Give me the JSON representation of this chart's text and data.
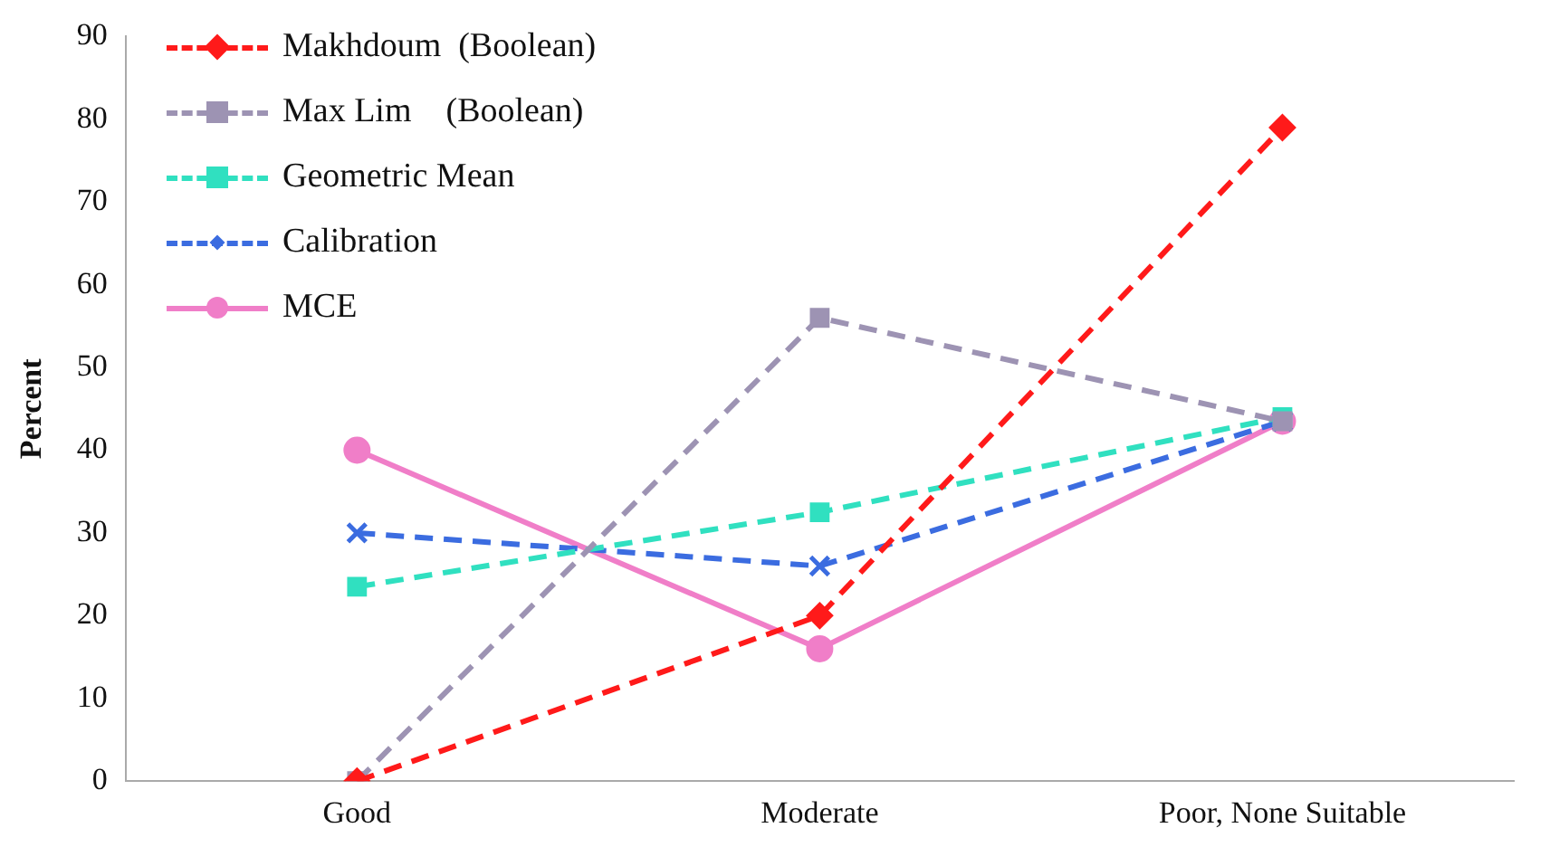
{
  "chart_data": {
    "type": "line",
    "ylabel": "Percent",
    "categories": [
      "Good",
      "Moderate",
      "Poor, None Suitable"
    ],
    "ylim": [
      0,
      90
    ],
    "yticks": [
      0,
      10,
      20,
      30,
      40,
      50,
      60,
      70,
      80,
      90
    ],
    "grid": false,
    "legend": "top left",
    "series": [
      {
        "name": "Makhdoum  (Boolean)",
        "color": "#ff1a1a",
        "marker": "diamond",
        "line_style": "dashed",
        "values": [
          0,
          20,
          79
        ]
      },
      {
        "name": "Max Lim    (Boolean)",
        "color": "#9d93b3",
        "marker": "square",
        "line_style": "dashed",
        "values": [
          0,
          56,
          43.5
        ]
      },
      {
        "name": "Geometric Mean",
        "color": "#30e0c0",
        "marker": "square",
        "line_style": "dashed",
        "values": [
          23.5,
          32.5,
          44
        ]
      },
      {
        "name": "Calibration",
        "color": "#3b6ce0",
        "marker": "cross",
        "line_style": "dashed",
        "values": [
          30,
          26,
          43.5
        ]
      },
      {
        "name": "MCE",
        "color": "#f07ec8",
        "marker": "circle",
        "line_style": "solid",
        "values": [
          40,
          16,
          43.5
        ]
      }
    ]
  }
}
